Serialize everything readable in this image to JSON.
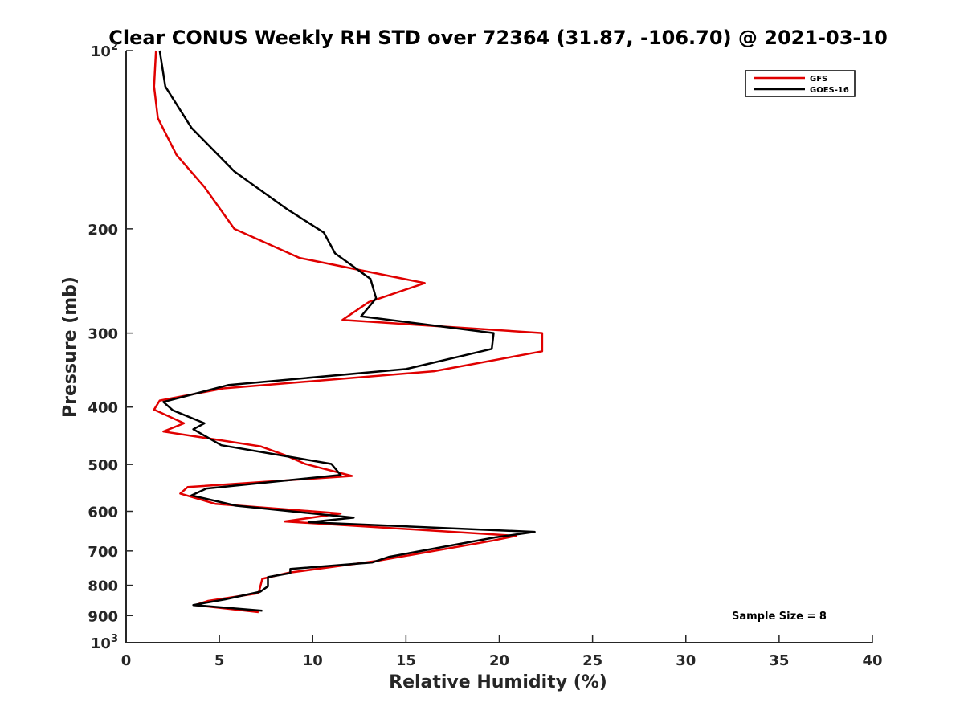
{
  "chart_data": {
    "type": "line",
    "title": "Clear CONUS Weekly RH STD over 72364 (31.87, -106.70) @ 2021-03-10",
    "xlabel": "Relative Humidity (%)",
    "ylabel": "Pressure (mb)",
    "xlim": [
      0,
      40
    ],
    "ylim": [
      100,
      1000
    ],
    "y_scale": "log",
    "y_reversed": true,
    "grid": false,
    "legend_position": "top-right",
    "x_ticks": [
      {
        "value": 0,
        "label": "0"
      },
      {
        "value": 5,
        "label": "5"
      },
      {
        "value": 10,
        "label": "10"
      },
      {
        "value": 15,
        "label": "15"
      },
      {
        "value": 20,
        "label": "20"
      },
      {
        "value": 25,
        "label": "25"
      },
      {
        "value": 30,
        "label": "30"
      },
      {
        "value": 35,
        "label": "35"
      },
      {
        "value": 40,
        "label": "40"
      }
    ],
    "y_ticks": [
      {
        "value": 100,
        "base": "10",
        "exp": "2"
      },
      {
        "value": 200,
        "label": "200"
      },
      {
        "value": 300,
        "label": "300"
      },
      {
        "value": 400,
        "label": "400"
      },
      {
        "value": 500,
        "label": "500"
      },
      {
        "value": 600,
        "label": "600"
      },
      {
        "value": 700,
        "label": "700"
      },
      {
        "value": 800,
        "label": "800"
      },
      {
        "value": 900,
        "label": "900"
      },
      {
        "value": 1000,
        "base": "10",
        "exp": "3"
      }
    ],
    "annotation": "Sample Size = 8",
    "series": [
      {
        "name": "GFS",
        "color": "#e00000",
        "points": [
          [
            1.6,
            100
          ],
          [
            1.5,
            115
          ],
          [
            1.7,
            130
          ],
          [
            2.7,
            150
          ],
          [
            4.2,
            170
          ],
          [
            5.8,
            200
          ],
          [
            9.3,
            224
          ],
          [
            16.0,
            247
          ],
          [
            13.0,
            266
          ],
          [
            11.6,
            285
          ],
          [
            22.3,
            300
          ],
          [
            22.3,
            322
          ],
          [
            16.5,
            348
          ],
          [
            5.2,
            372
          ],
          [
            1.8,
            390
          ],
          [
            1.5,
            404
          ],
          [
            3.1,
            426
          ],
          [
            2.0,
            440
          ],
          [
            7.2,
            466
          ],
          [
            8.5,
            482
          ],
          [
            9.6,
            499
          ],
          [
            12.1,
            523
          ],
          [
            3.3,
            546
          ],
          [
            2.9,
            560
          ],
          [
            4.8,
            583
          ],
          [
            11.5,
            605
          ],
          [
            8.5,
            624
          ],
          [
            20.9,
            660
          ],
          [
            19.6,
            673
          ],
          [
            13.4,
            728
          ],
          [
            8.7,
            762
          ],
          [
            7.3,
            780
          ],
          [
            7.1,
            825
          ],
          [
            4.4,
            850
          ],
          [
            3.7,
            864
          ],
          [
            7.1,
            888
          ]
        ]
      },
      {
        "name": "GOES-16",
        "color": "#000000",
        "points": [
          [
            1.8,
            100
          ],
          [
            2.1,
            115
          ],
          [
            3.5,
            135
          ],
          [
            5.8,
            160
          ],
          [
            8.6,
            185
          ],
          [
            10.6,
            203
          ],
          [
            11.2,
            220
          ],
          [
            13.1,
            243
          ],
          [
            13.4,
            262
          ],
          [
            12.6,
            281
          ],
          [
            19.7,
            300
          ],
          [
            19.6,
            319
          ],
          [
            15.0,
            345
          ],
          [
            5.5,
            367
          ],
          [
            2.0,
            392
          ],
          [
            2.5,
            405
          ],
          [
            4.2,
            426
          ],
          [
            3.6,
            436
          ],
          [
            5.1,
            464
          ],
          [
            11.0,
            499
          ],
          [
            11.5,
            521
          ],
          [
            4.3,
            549
          ],
          [
            3.5,
            564
          ],
          [
            5.9,
            587
          ],
          [
            12.2,
            615
          ],
          [
            9.8,
            626
          ],
          [
            21.9,
            650
          ],
          [
            19.8,
            664
          ],
          [
            14.1,
            716
          ],
          [
            13.2,
            732
          ],
          [
            8.8,
            751
          ],
          [
            8.8,
            763
          ],
          [
            7.6,
            775
          ],
          [
            7.6,
            803
          ],
          [
            7.2,
            820
          ],
          [
            5.3,
            845
          ],
          [
            3.6,
            864
          ],
          [
            7.3,
            883
          ]
        ]
      }
    ]
  }
}
